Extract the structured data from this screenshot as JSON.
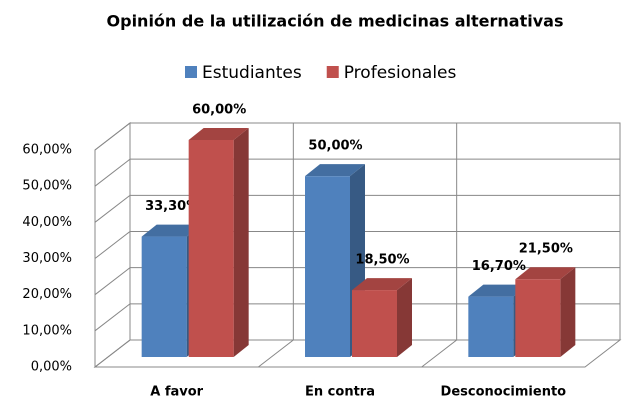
{
  "chart_data": {
    "type": "bar3d",
    "title": "Opinión de la utilización de medicinas alternativas",
    "categories": [
      "A favor",
      "En contra",
      "Desconocimiento"
    ],
    "series": [
      {
        "name": "Estudiantes",
        "color": "#4f81bd",
        "values": [
          33.3,
          50,
          16.7
        ],
        "value_labels": [
          "33,30%",
          "50,00%",
          "16,70%"
        ]
      },
      {
        "name": "Profesionales",
        "color": "#c0504d",
        "values": [
          60,
          18.5,
          21.5
        ],
        "value_labels": [
          "60,00%",
          "18,50%",
          "21,50%"
        ]
      }
    ],
    "ylim": [
      0,
      60
    ],
    "yticks": [
      {
        "value": 0,
        "label": "0,00%"
      },
      {
        "value": 10,
        "label": "10,00%"
      },
      {
        "value": 20,
        "label": "20,00%"
      },
      {
        "value": 30,
        "label": "30,00%"
      },
      {
        "value": 40,
        "label": "40,00%"
      },
      {
        "value": 50,
        "label": "50,00%"
      },
      {
        "value": 60,
        "label": "60,00%"
      }
    ],
    "legend": "top",
    "grid": true
  }
}
